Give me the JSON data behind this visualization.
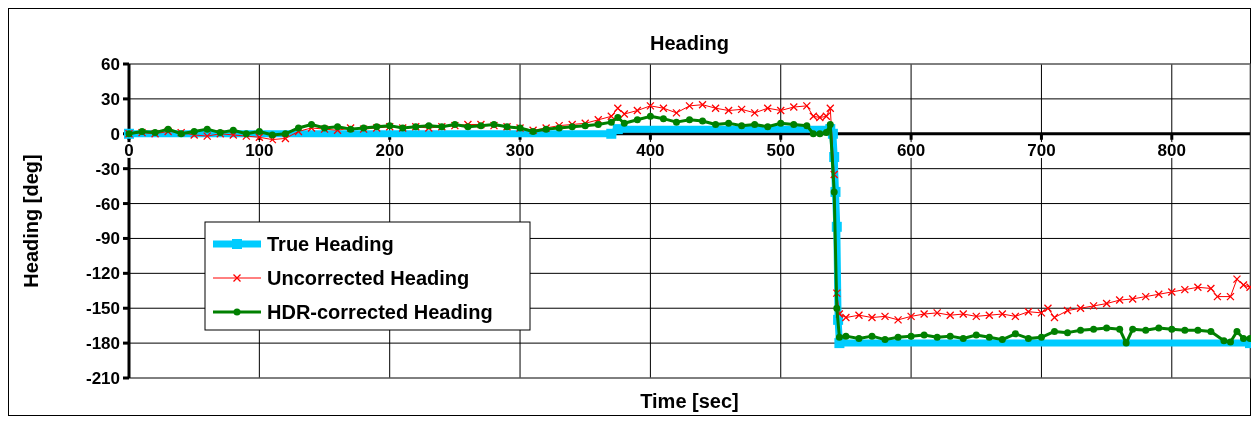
{
  "chart_data": {
    "type": "line",
    "title": "Heading",
    "xlabel": "Time [sec]",
    "ylabel": "Heading [deg]",
    "xlim": [
      0,
      860
    ],
    "xticks": [
      0,
      100,
      200,
      300,
      400,
      500,
      600,
      700,
      800
    ],
    "ylim": [
      -210,
      60
    ],
    "yticks": [
      -210,
      -180,
      -150,
      -120,
      -90,
      -60,
      -30,
      0,
      30,
      60
    ],
    "grid": true,
    "legend": "bottom left",
    "series": [
      {
        "name": "True Heading",
        "color": "#00ccff",
        "marker": "square",
        "x": [
          0,
          370,
          375,
          538,
          540,
          541,
          542,
          543,
          544,
          545,
          860
        ],
        "values": [
          0,
          0,
          4,
          4,
          0,
          -20,
          -50,
          -80,
          -160,
          -180,
          -180
        ]
      },
      {
        "name": "Uncorrected Heading",
        "color": "#ff0000",
        "marker": "cross",
        "x": [
          0,
          10,
          20,
          30,
          40,
          50,
          60,
          70,
          80,
          90,
          100,
          110,
          120,
          130,
          140,
          150,
          160,
          170,
          180,
          190,
          200,
          210,
          220,
          230,
          240,
          250,
          260,
          270,
          280,
          290,
          300,
          310,
          320,
          330,
          340,
          350,
          360,
          370,
          375,
          380,
          390,
          400,
          410,
          420,
          430,
          440,
          450,
          460,
          470,
          480,
          490,
          500,
          510,
          520,
          525,
          530,
          535,
          538,
          541,
          543,
          545,
          550,
          560,
          570,
          580,
          590,
          600,
          610,
          620,
          630,
          640,
          650,
          660,
          670,
          680,
          690,
          700,
          705,
          710,
          720,
          730,
          740,
          750,
          760,
          770,
          780,
          790,
          800,
          810,
          820,
          830,
          835,
          845,
          850,
          855,
          860
        ],
        "values": [
          0,
          1,
          0,
          2,
          1,
          -1,
          -2,
          0,
          -1,
          -2,
          -3,
          -5,
          -4,
          2,
          5,
          4,
          3,
          5,
          4,
          5,
          6,
          5,
          6,
          5,
          6,
          7,
          8,
          8,
          7,
          6,
          5,
          3,
          5,
          7,
          8,
          9,
          12,
          15,
          22,
          17,
          20,
          24,
          22,
          18,
          24,
          25,
          22,
          20,
          21,
          18,
          22,
          20,
          23,
          24,
          15,
          14,
          15,
          22,
          -35,
          -137,
          -155,
          -158,
          -156,
          -158,
          -157,
          -160,
          -157,
          -155,
          -154,
          -156,
          -155,
          -157,
          -156,
          -155,
          -157,
          -153,
          -154,
          -150,
          -158,
          -152,
          -150,
          -148,
          -146,
          -143,
          -142,
          -140,
          -138,
          -136,
          -134,
          -132,
          -133,
          -140,
          -140,
          -125,
          -130,
          -132
        ]
      },
      {
        "name": "HDR-corrected Heading",
        "color": "#008000",
        "marker": "circle",
        "x": [
          0,
          10,
          20,
          30,
          40,
          50,
          60,
          70,
          80,
          90,
          100,
          110,
          120,
          130,
          140,
          150,
          160,
          170,
          180,
          190,
          200,
          210,
          220,
          230,
          240,
          250,
          260,
          270,
          280,
          290,
          300,
          310,
          320,
          330,
          340,
          350,
          360,
          370,
          375,
          380,
          390,
          400,
          410,
          420,
          430,
          440,
          450,
          460,
          470,
          480,
          490,
          500,
          510,
          520,
          525,
          530,
          535,
          538,
          541,
          543,
          545,
          550,
          560,
          570,
          580,
          590,
          600,
          610,
          620,
          630,
          640,
          650,
          660,
          670,
          680,
          690,
          700,
          710,
          720,
          730,
          740,
          750,
          760,
          765,
          770,
          780,
          790,
          800,
          810,
          820,
          830,
          840,
          845,
          850,
          855,
          860
        ],
        "values": [
          0,
          2,
          1,
          4,
          0,
          2,
          4,
          1,
          3,
          0,
          2,
          -1,
          0,
          5,
          8,
          5,
          6,
          4,
          5,
          6,
          7,
          5,
          6,
          7,
          6,
          8,
          6,
          7,
          8,
          6,
          5,
          2,
          4,
          5,
          6,
          7,
          8,
          10,
          14,
          9,
          12,
          15,
          13,
          10,
          12,
          11,
          8,
          9,
          7,
          8,
          6,
          9,
          8,
          7,
          0,
          0,
          1,
          8,
          -50,
          -150,
          -175,
          -174,
          -176,
          -174,
          -177,
          -175,
          -174,
          -173,
          -175,
          -174,
          -176,
          -173,
          -175,
          -177,
          -172,
          -176,
          -175,
          -170,
          -171,
          -169,
          -168,
          -167,
          -168,
          -180,
          -168,
          -169,
          -167,
          -168,
          -169,
          -169,
          -170,
          -178,
          -179,
          -170,
          -176,
          -176
        ]
      }
    ]
  }
}
